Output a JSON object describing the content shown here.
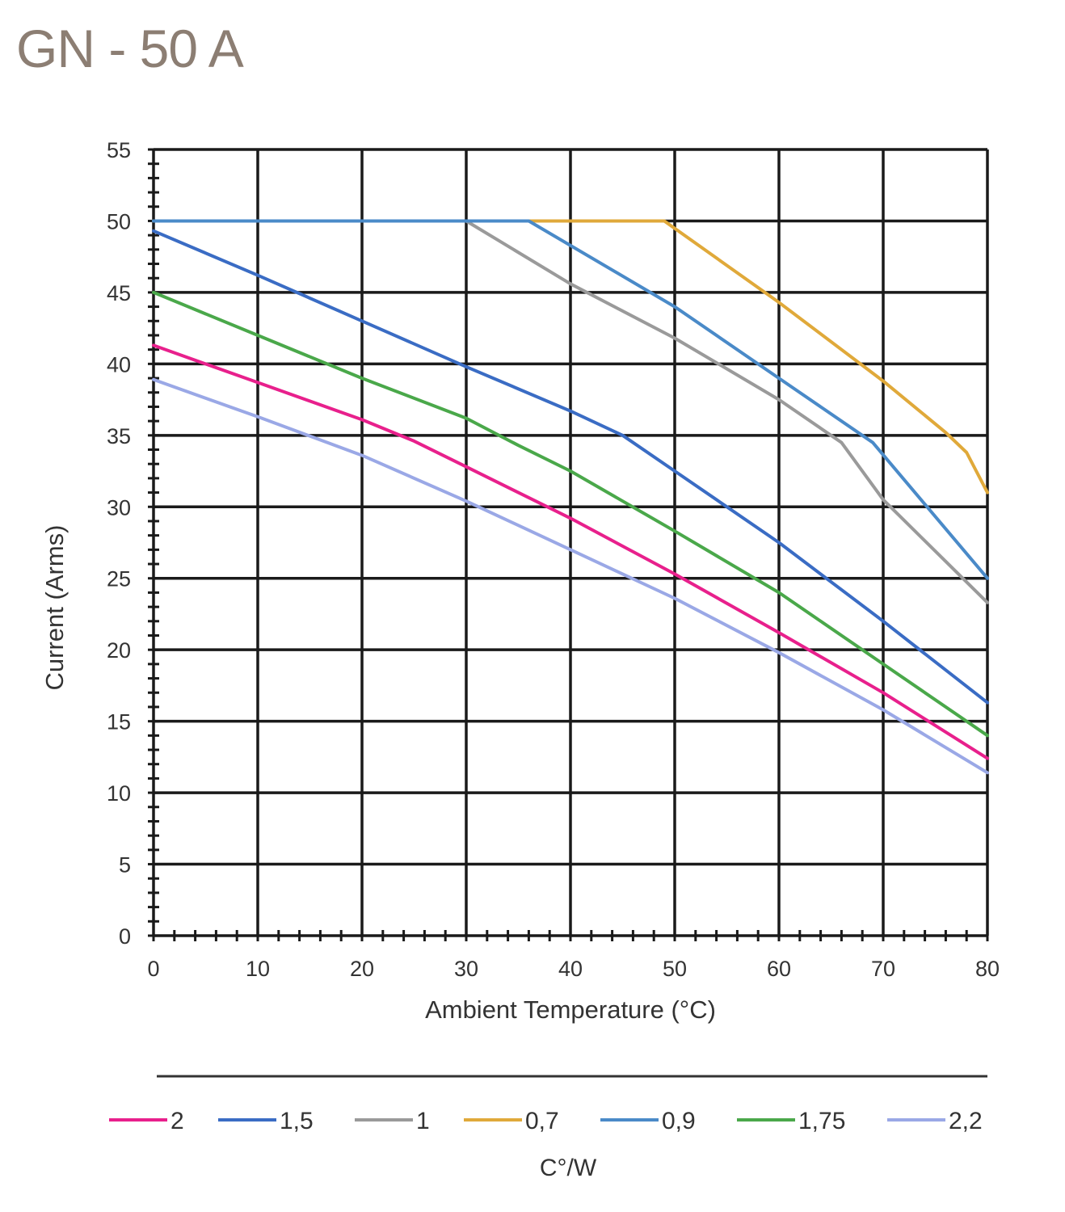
{
  "title": "GN - 50 A",
  "chart_data": {
    "type": "line",
    "title": "GN - 50 A",
    "xlabel": "Ambient Temperature (°C)",
    "ylabel": "Current (Arms)",
    "xlim": [
      0,
      80
    ],
    "ylim": [
      0,
      55
    ],
    "x_ticks": [
      0,
      10,
      20,
      30,
      40,
      50,
      60,
      70,
      80
    ],
    "y_ticks": [
      0,
      5,
      10,
      15,
      20,
      25,
      30,
      35,
      40,
      45,
      50,
      55
    ],
    "grid": true,
    "legend_position": "bottom",
    "legend_title": "C°/W",
    "series": [
      {
        "name": "2",
        "color": "#e8208c",
        "points": [
          [
            0,
            41.3
          ],
          [
            10,
            38.7
          ],
          [
            20,
            36.1
          ],
          [
            25,
            34.6
          ],
          [
            30,
            32.8
          ],
          [
            40,
            29.2
          ],
          [
            50,
            25.3
          ],
          [
            60,
            21.2
          ],
          [
            70,
            17.0
          ],
          [
            80,
            12.4
          ]
        ]
      },
      {
        "name": "1,5",
        "color": "#3a6cc4",
        "points": [
          [
            0,
            49.3
          ],
          [
            10,
            46.2
          ],
          [
            20,
            43.0
          ],
          [
            30,
            39.8
          ],
          [
            40,
            36.7
          ],
          [
            45,
            35.0
          ],
          [
            50,
            32.5
          ],
          [
            60,
            27.5
          ],
          [
            70,
            22.0
          ],
          [
            80,
            16.3
          ]
        ]
      },
      {
        "name": "1",
        "color": "#9a9a9a",
        "points": [
          [
            0,
            50
          ],
          [
            30,
            50
          ],
          [
            40,
            45.6
          ],
          [
            50,
            41.8
          ],
          [
            60,
            37.5
          ],
          [
            66,
            34.5
          ],
          [
            70,
            30.5
          ],
          [
            80,
            23.3
          ]
        ]
      },
      {
        "name": "0,7",
        "color": "#e0a93a",
        "points": [
          [
            0,
            50
          ],
          [
            49,
            50
          ],
          [
            60,
            44.3
          ],
          [
            70,
            38.8
          ],
          [
            76,
            35.2
          ],
          [
            78,
            33.8
          ],
          [
            80,
            31.0
          ]
        ]
      },
      {
        "name": "0,9",
        "color": "#4a8ac8",
        "points": [
          [
            0,
            50
          ],
          [
            36,
            50
          ],
          [
            50,
            44.0
          ],
          [
            60,
            39.0
          ],
          [
            69,
            34.5
          ],
          [
            80,
            25.0
          ]
        ]
      },
      {
        "name": "1,75",
        "color": "#4aa84a",
        "points": [
          [
            0,
            45.0
          ],
          [
            10,
            42.0
          ],
          [
            20,
            39.0
          ],
          [
            30,
            36.2
          ],
          [
            35,
            34.3
          ],
          [
            40,
            32.5
          ],
          [
            50,
            28.3
          ],
          [
            60,
            24.0
          ],
          [
            70,
            19.0
          ],
          [
            80,
            14.0
          ]
        ]
      },
      {
        "name": "2,2",
        "color": "#9aa8e6",
        "points": [
          [
            0,
            38.9
          ],
          [
            10,
            36.3
          ],
          [
            20,
            33.6
          ],
          [
            30,
            30.4
          ],
          [
            40,
            27.0
          ],
          [
            50,
            23.6
          ],
          [
            60,
            19.8
          ],
          [
            70,
            15.8
          ],
          [
            80,
            11.4
          ]
        ]
      }
    ]
  }
}
